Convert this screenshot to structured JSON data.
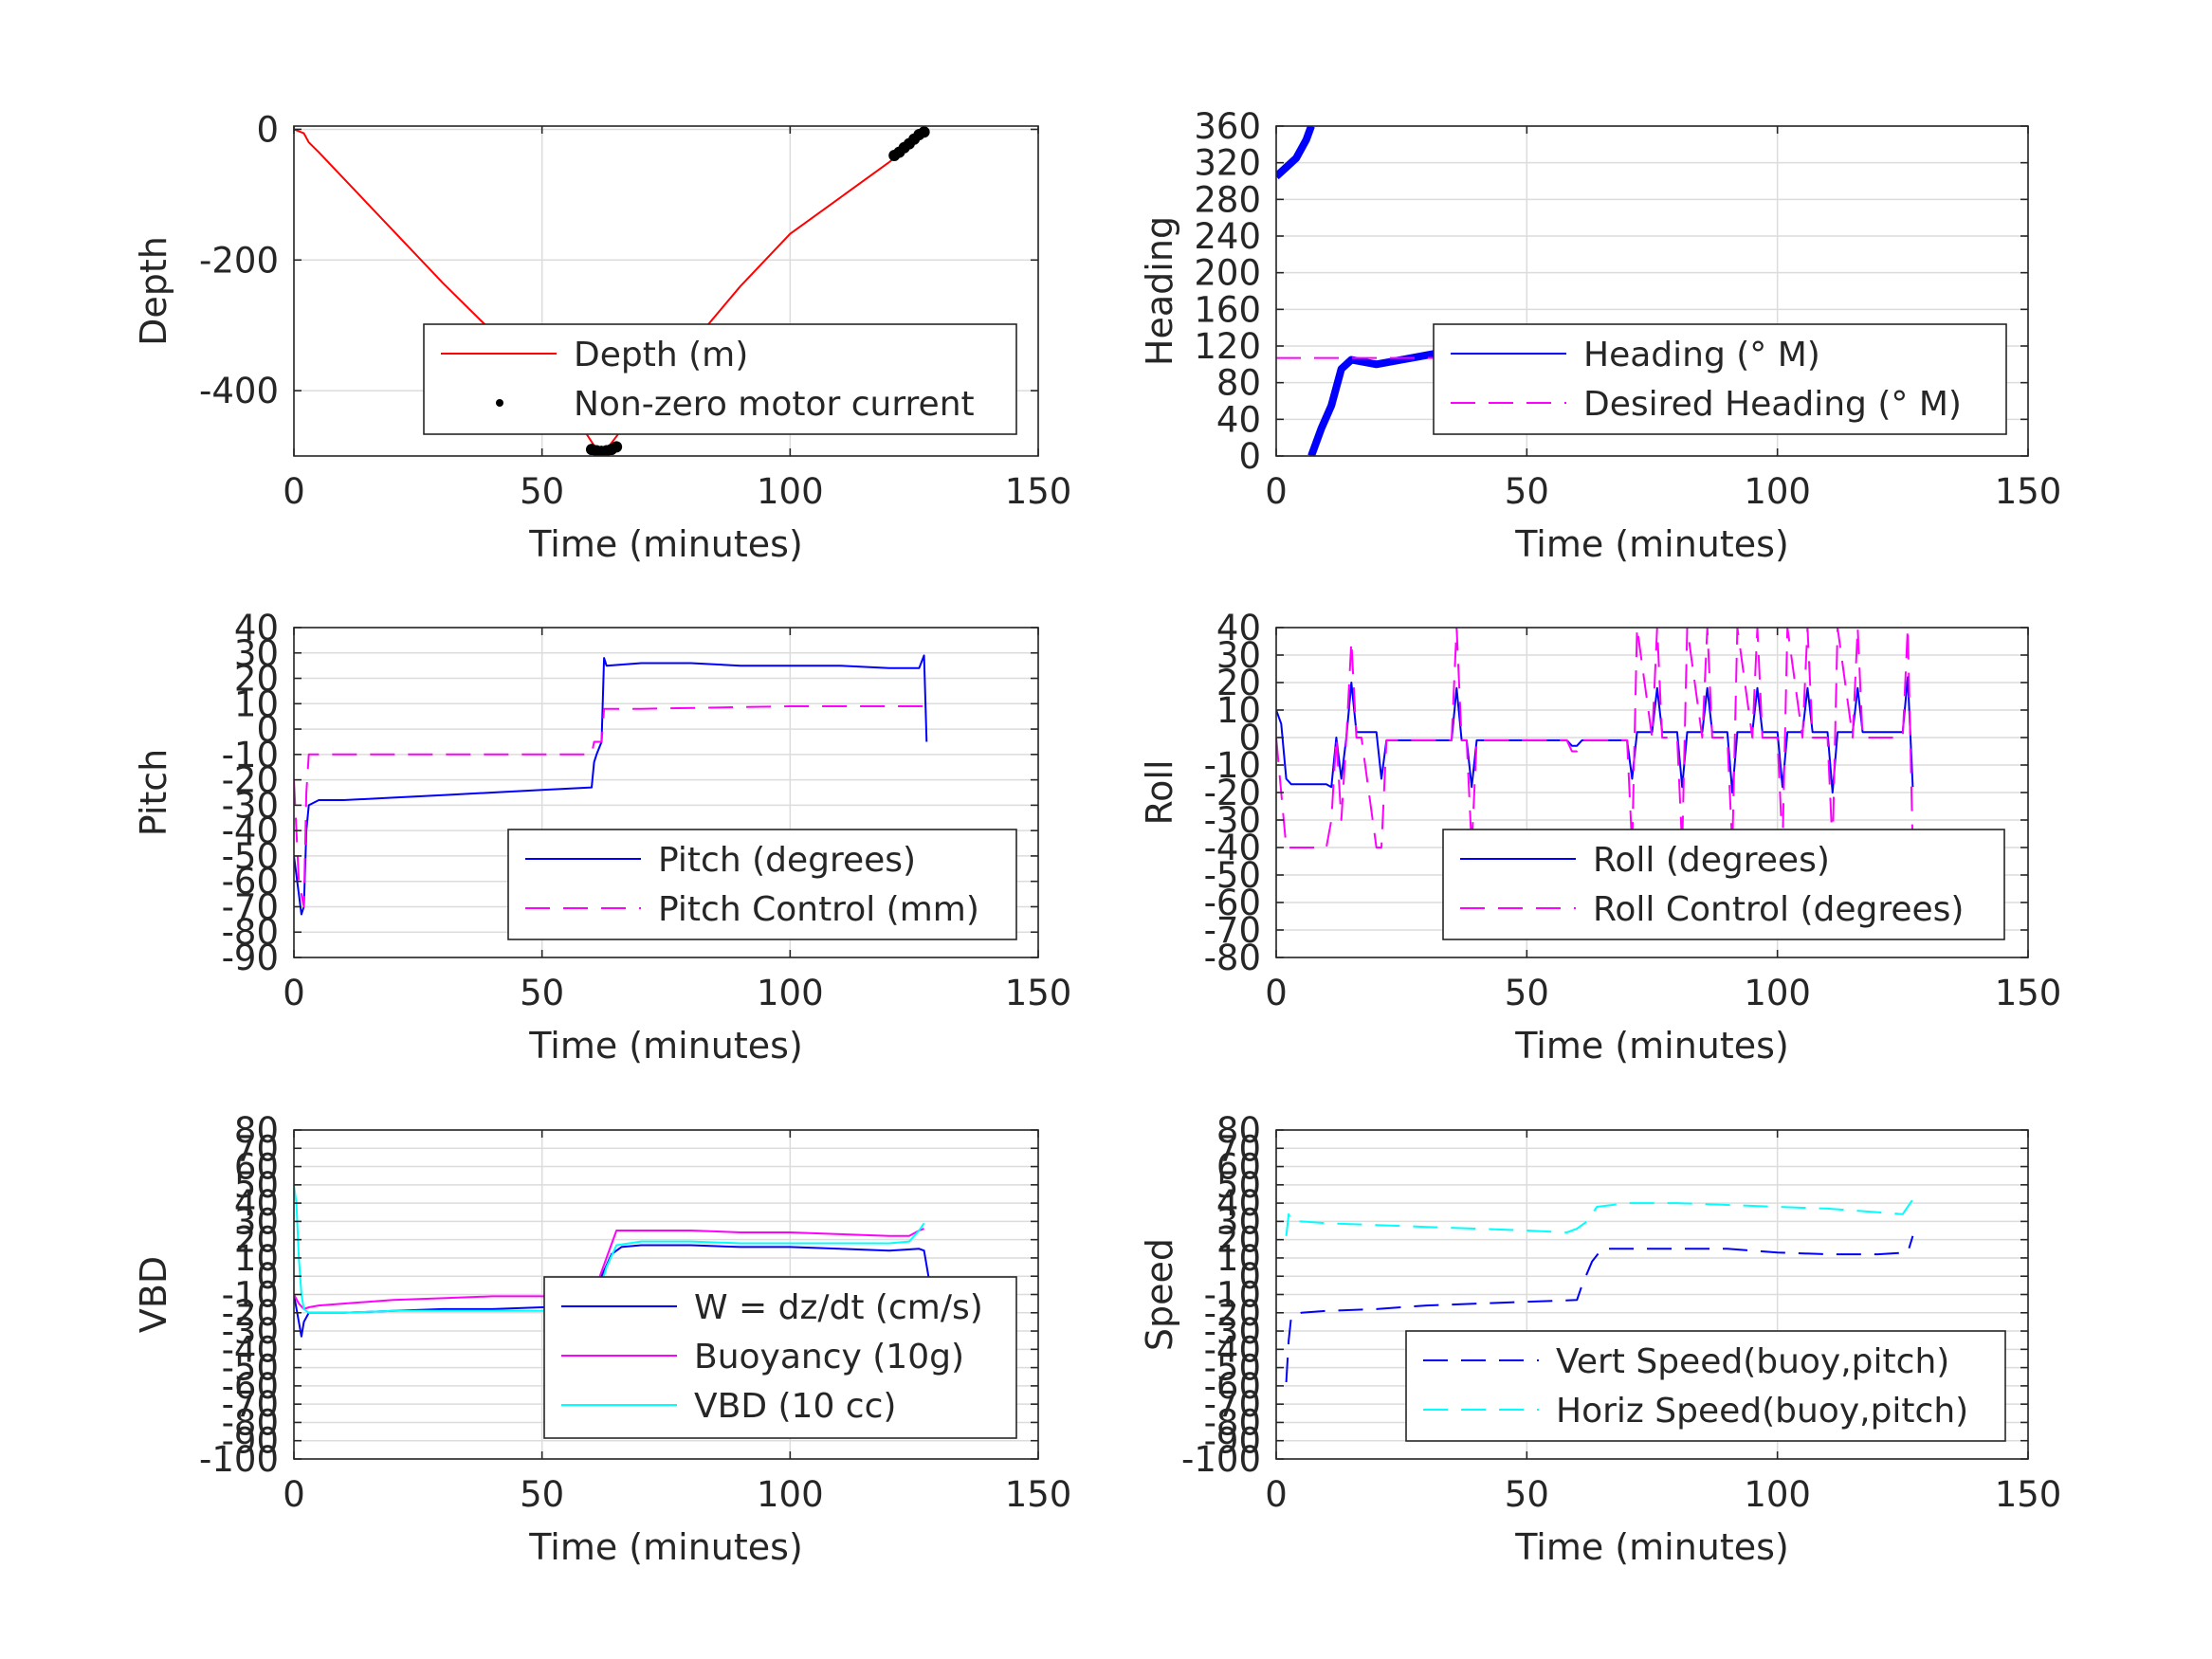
{
  "chart_data": [
    {
      "type": "line",
      "xlabel": "Time (minutes)",
      "ylabel": "Depth",
      "xlim": [
        0,
        150
      ],
      "ylim": [
        -500,
        5
      ],
      "xticks": [
        0,
        50,
        100,
        150
      ],
      "yticks": [
        -400,
        -200,
        0
      ],
      "grid": true,
      "legend_position": "bottom-right",
      "series": [
        {
          "name": "Depth (m)",
          "color": "#ff0000",
          "style": "solid",
          "x": [
            0,
            1,
            2,
            3,
            5,
            10,
            20,
            30,
            40,
            50,
            58,
            61,
            63,
            65,
            70,
            80,
            90,
            100,
            110,
            120,
            125,
            127
          ],
          "y": [
            0,
            -3,
            -6,
            -20,
            -35,
            -75,
            -155,
            -235,
            -310,
            -390,
            -455,
            -490,
            -490,
            -470,
            -420,
            -330,
            -240,
            -160,
            -105,
            -50,
            -20,
            -5
          ]
        },
        {
          "name": "Non-zero motor current",
          "color": "#000000",
          "style": "dots",
          "x": [
            60,
            61,
            62,
            63,
            64,
            65,
            121,
            122,
            123,
            124,
            125,
            126,
            127
          ],
          "y": [
            -490,
            -492,
            -493,
            -492,
            -490,
            -486,
            -40,
            -35,
            -28,
            -22,
            -15,
            -8,
            -4
          ]
        }
      ]
    },
    {
      "type": "line",
      "xlabel": "Time (minutes)",
      "ylabel": "Heading",
      "xlim": [
        0,
        150
      ],
      "ylim": [
        0,
        360
      ],
      "xticks": [
        0,
        50,
        100,
        150
      ],
      "yticks": [
        0,
        40,
        80,
        120,
        160,
        200,
        240,
        280,
        320,
        360
      ],
      "grid": true,
      "legend_position": "bottom-right",
      "series": [
        {
          "name": "Heading (° M)",
          "color": "#0000ff",
          "style": "thick",
          "segments": [
            {
              "x": [
                0,
                2,
                4,
                6,
                7
              ],
              "y": [
                305,
                315,
                325,
                345,
                360
              ]
            },
            {
              "x": [
                7,
                9,
                11,
                13,
                15,
                20,
                25,
                30,
                35,
                40,
                45,
                50,
                55,
                60,
                65,
                70,
                75,
                80,
                85,
                90,
                95,
                100,
                105,
                110,
                115,
                120,
                125,
                128
              ],
              "y": [
                0,
                30,
                55,
                95,
                105,
                100,
                105,
                110,
                115,
                100,
                105,
                100,
                105,
                100,
                105,
                110,
                100,
                105,
                110,
                100,
                105,
                100,
                110,
                100,
                105,
                110,
                115,
                105
              ]
            }
          ]
        },
        {
          "name": "Desired Heading (° M)",
          "color": "#ff00ff",
          "style": "dashed",
          "x": [
            0,
            128
          ],
          "y": [
            107,
            107
          ]
        }
      ]
    },
    {
      "type": "line",
      "xlabel": "Time (minutes)",
      "ylabel": "Pitch",
      "xlim": [
        0,
        150
      ],
      "ylim": [
        -90,
        40
      ],
      "xticks": [
        0,
        50,
        100,
        150
      ],
      "yticks": [
        -90,
        -80,
        -70,
        -60,
        -50,
        -40,
        -30,
        -20,
        -10,
        0,
        10,
        20,
        30,
        40
      ],
      "grid": true,
      "legend_position": "bottom-right",
      "series": [
        {
          "name": "Pitch (degrees)",
          "color": "#0000ff",
          "style": "solid",
          "x": [
            0,
            1,
            1.5,
            2,
            2.5,
            3,
            5,
            10,
            20,
            30,
            40,
            50,
            60,
            60.5,
            61,
            62,
            62.5,
            63,
            70,
            80,
            90,
            100,
            110,
            120,
            126,
            127,
            127.5
          ],
          "y": [
            -50,
            -65,
            -73,
            -70,
            -40,
            -30,
            -28,
            -28,
            -27,
            -26,
            -25,
            -24,
            -23,
            -13,
            -10,
            -5,
            28,
            25,
            26,
            26,
            25,
            25,
            25,
            24,
            24,
            29,
            -5
          ]
        },
        {
          "name": "Pitch Control (mm)",
          "color": "#ff00ff",
          "style": "dashed",
          "x": [
            0,
            1,
            2,
            2.5,
            3,
            60,
            60.5,
            62,
            62.5,
            70,
            100,
            127
          ],
          "y": [
            -20,
            -60,
            -70,
            -25,
            -10,
            -10,
            -5,
            -5,
            8,
            8,
            9,
            9
          ]
        }
      ]
    },
    {
      "type": "line",
      "xlabel": "Time (minutes)",
      "ylabel": "Roll",
      "xlim": [
        0,
        150
      ],
      "ylim": [
        -80,
        40
      ],
      "xticks": [
        0,
        50,
        100,
        150
      ],
      "yticks": [
        -80,
        -70,
        -60,
        -50,
        -40,
        -30,
        -20,
        -10,
        0,
        10,
        20,
        30,
        40
      ],
      "grid": true,
      "legend_position": "bottom-right",
      "series": [
        {
          "name": "Roll (degrees)",
          "color": "#0000ff",
          "style": "solid",
          "x": [
            0,
            1,
            2,
            3,
            5,
            10,
            11,
            12,
            13,
            14,
            15,
            16,
            17,
            20,
            21,
            22,
            25,
            35,
            36,
            37,
            38,
            39,
            40,
            58,
            59,
            60,
            61,
            70,
            71,
            72,
            75,
            76,
            77,
            80,
            81,
            82,
            85,
            86,
            87,
            90,
            91,
            92,
            95,
            96,
            97,
            100,
            101,
            102,
            105,
            106,
            107,
            110,
            111,
            112,
            115,
            116,
            117,
            120,
            125,
            126,
            127
          ],
          "y": [
            10,
            5,
            -15,
            -17,
            -17,
            -17,
            -18,
            0,
            -15,
            0,
            20,
            2,
            2,
            2,
            -15,
            -1,
            -1,
            -1,
            18,
            -1,
            -1,
            -18,
            -1,
            -1,
            -3,
            -3,
            -1,
            -1,
            -15,
            2,
            2,
            18,
            2,
            2,
            -18,
            2,
            2,
            18,
            2,
            2,
            -20,
            2,
            2,
            18,
            2,
            2,
            -18,
            2,
            2,
            18,
            2,
            2,
            -20,
            2,
            2,
            18,
            2,
            2,
            2,
            22,
            -18
          ]
        },
        {
          "name": "Roll Control (degrees)",
          "color": "#ff00ff",
          "style": "dashed",
          "x": [
            0,
            2,
            3,
            10,
            11,
            12,
            13,
            14,
            15,
            16,
            17,
            20,
            21,
            22,
            25,
            35,
            36,
            37,
            38,
            39,
            40,
            58,
            59,
            60,
            61,
            70,
            71,
            72,
            75,
            76,
            77,
            80,
            81,
            82,
            85,
            86,
            87,
            90,
            91,
            92,
            95,
            96,
            97,
            100,
            101,
            102,
            105,
            106,
            107,
            110,
            111,
            112,
            115,
            116,
            117,
            120,
            125,
            126,
            127
          ],
          "y": [
            0,
            -40,
            -40,
            -40,
            -30,
            0,
            -30,
            0,
            35,
            0,
            0,
            -40,
            -40,
            -1,
            -1,
            -1,
            40,
            -1,
            -1,
            -40,
            -1,
            -1,
            -5,
            -5,
            -1,
            -1,
            -40,
            40,
            0,
            40,
            0,
            0,
            -40,
            40,
            0,
            40,
            0,
            0,
            -40,
            40,
            0,
            40,
            0,
            0,
            -40,
            40,
            0,
            40,
            0,
            0,
            -40,
            40,
            0,
            40,
            0,
            0,
            0,
            40,
            -40
          ]
        }
      ]
    },
    {
      "type": "line",
      "xlabel": "Time (minutes)",
      "ylabel": "VBD",
      "xlim": [
        0,
        150
      ],
      "ylim": [
        -100,
        80
      ],
      "xticks": [
        0,
        50,
        100,
        150
      ],
      "yticks": [
        -100,
        -90,
        -80,
        -70,
        -60,
        -50,
        -40,
        -30,
        -20,
        -10,
        0,
        10,
        20,
        30,
        40,
        50,
        60,
        70,
        80
      ],
      "grid": true,
      "legend_position": "bottom-right",
      "series": [
        {
          "name": "W = dz/dt (cm/s)",
          "color": "#0000ff",
          "style": "solid",
          "x": [
            0,
            1,
            1.5,
            2,
            3,
            5,
            10,
            20,
            30,
            40,
            50,
            60,
            61,
            62,
            64,
            66,
            70,
            80,
            90,
            100,
            110,
            120,
            126,
            127,
            128
          ],
          "y": [
            -10,
            -25,
            -33,
            -25,
            -20,
            -20,
            -20,
            -19,
            -18,
            -18,
            -17,
            -16,
            -12,
            0,
            12,
            16,
            17,
            17,
            16,
            16,
            15,
            14,
            15,
            14,
            -2
          ]
        },
        {
          "name": "Buoyancy (10g)",
          "color": "#ff00ff",
          "style": "solid",
          "x": [
            0,
            1,
            2,
            3,
            5,
            10,
            20,
            30,
            40,
            50,
            60,
            61,
            63,
            65,
            70,
            80,
            90,
            100,
            110,
            120,
            124,
            126,
            127
          ],
          "y": [
            -10,
            -15,
            -18,
            -17,
            -16,
            -15,
            -13,
            -12,
            -11,
            -11,
            -10,
            -5,
            10,
            25,
            25,
            25,
            24,
            24,
            23,
            22,
            22,
            25,
            26
          ]
        },
        {
          "name": "VBD (10 cc)",
          "color": "#00ffff",
          "style": "solid",
          "x": [
            0,
            0.5,
            1,
            1.5,
            2,
            3,
            5,
            10,
            20,
            30,
            40,
            50,
            60,
            61,
            63,
            65,
            70,
            80,
            90,
            100,
            110,
            120,
            124,
            126,
            127
          ],
          "y": [
            50,
            40,
            10,
            -10,
            -18,
            -20,
            -20,
            -20,
            -19,
            -19,
            -19,
            -19,
            -18,
            -13,
            5,
            17,
            19,
            19,
            18,
            18,
            18,
            18,
            19,
            25,
            29
          ]
        }
      ]
    },
    {
      "type": "line",
      "xlabel": "Time (minutes)",
      "ylabel": "Speed",
      "xlim": [
        0,
        150
      ],
      "ylim": [
        -100,
        80
      ],
      "xticks": [
        0,
        50,
        100,
        150
      ],
      "yticks": [
        -100,
        -90,
        -80,
        -70,
        -60,
        -50,
        -40,
        -30,
        -20,
        -10,
        0,
        10,
        20,
        30,
        40,
        50,
        60,
        70,
        80
      ],
      "grid": true,
      "legend_position": "bottom-right",
      "series": [
        {
          "name": "Vert Speed(buoy,pitch)",
          "color": "#0000ff",
          "style": "dashed",
          "x": [
            2,
            2.5,
            3,
            5,
            10,
            20,
            30,
            40,
            50,
            60,
            61,
            63,
            65,
            70,
            80,
            90,
            100,
            110,
            120,
            126,
            127
          ],
          "y": [
            -58,
            -35,
            -22,
            -20,
            -19,
            -18,
            -16,
            -15,
            -14,
            -13,
            -5,
            8,
            15,
            15,
            15,
            15,
            13,
            12,
            12,
            13,
            22
          ]
        },
        {
          "name": "Horiz Speed(buoy,pitch)",
          "color": "#00ffff",
          "style": "dashed",
          "x": [
            2,
            2.5,
            3,
            5,
            10,
            20,
            30,
            40,
            50,
            58,
            60,
            62,
            64,
            70,
            80,
            90,
            100,
            110,
            120,
            125,
            126,
            127
          ],
          "y": [
            22,
            34,
            30,
            30,
            29,
            28,
            27,
            26,
            25,
            24,
            26,
            30,
            38,
            40,
            40,
            39,
            38,
            37,
            35,
            34,
            38,
            42
          ]
        }
      ]
    }
  ]
}
